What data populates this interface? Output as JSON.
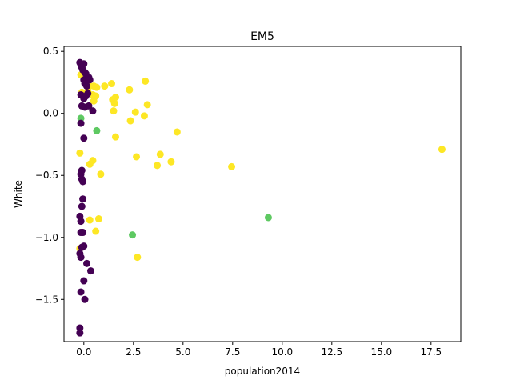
{
  "chart_data": {
    "type": "scatter",
    "title": "EM5",
    "xlabel": "population2014",
    "ylabel": "White",
    "xlim": [
      -1.0,
      19.0
    ],
    "ylim": [
      -1.84,
      0.54
    ],
    "grid": false,
    "x_ticks": [
      {
        "value": 0.0,
        "label": "0.0"
      },
      {
        "value": 2.5,
        "label": "2.5"
      },
      {
        "value": 5.0,
        "label": "5.0"
      },
      {
        "value": 7.5,
        "label": "7.5"
      },
      {
        "value": 10.0,
        "label": "10.0"
      },
      {
        "value": 12.5,
        "label": "12.5"
      },
      {
        "value": 15.0,
        "label": "15.0"
      },
      {
        "value": 17.5,
        "label": "17.5"
      }
    ],
    "y_ticks": [
      {
        "value": 0.5,
        "label": "0.5"
      },
      {
        "value": 0.0,
        "label": "0.0"
      },
      {
        "value": -0.5,
        "label": "−0.5"
      },
      {
        "value": -1.0,
        "label": "−1.0"
      },
      {
        "value": -1.5,
        "label": "−1.5"
      }
    ],
    "series": [
      {
        "color": "#fde725",
        "points": [
          {
            "x": -0.15,
            "y": 0.31
          },
          {
            "x": -0.1,
            "y": 0.17
          },
          {
            "x": 0.05,
            "y": 0.3
          },
          {
            "x": 0.2,
            "y": 0.18
          },
          {
            "x": 0.3,
            "y": 0.22
          },
          {
            "x": 0.45,
            "y": 0.15
          },
          {
            "x": 0.5,
            "y": 0.22
          },
          {
            "x": 0.5,
            "y": 0.1
          },
          {
            "x": 0.6,
            "y": 0.14
          },
          {
            "x": 0.65,
            "y": 0.21
          },
          {
            "x": 1.05,
            "y": 0.22
          },
          {
            "x": 1.4,
            "y": 0.24
          },
          {
            "x": 1.45,
            "y": 0.11
          },
          {
            "x": 1.55,
            "y": 0.08
          },
          {
            "x": 1.6,
            "y": 0.13
          },
          {
            "x": 1.5,
            "y": 0.02
          },
          {
            "x": 1.6,
            "y": -0.19
          },
          {
            "x": 2.3,
            "y": 0.19
          },
          {
            "x": 2.35,
            "y": -0.06
          },
          {
            "x": 2.6,
            "y": 0.01
          },
          {
            "x": 2.65,
            "y": -0.35
          },
          {
            "x": 3.05,
            "y": -0.02
          },
          {
            "x": 3.1,
            "y": 0.26
          },
          {
            "x": 3.2,
            "y": 0.07
          },
          {
            "x": 3.7,
            "y": -0.42
          },
          {
            "x": 3.85,
            "y": -0.33
          },
          {
            "x": 4.4,
            "y": -0.39
          },
          {
            "x": 4.7,
            "y": -0.15
          },
          {
            "x": 7.45,
            "y": -0.43
          },
          {
            "x": 18.05,
            "y": -0.29
          },
          {
            "x": -0.2,
            "y": -0.32
          },
          {
            "x": 0.3,
            "y": -0.41
          },
          {
            "x": 0.45,
            "y": -0.38
          },
          {
            "x": 0.85,
            "y": -0.49
          },
          {
            "x": 0.3,
            "y": -0.86
          },
          {
            "x": 0.75,
            "y": -0.85
          },
          {
            "x": 0.6,
            "y": -0.95
          },
          {
            "x": -0.2,
            "y": -1.09
          },
          {
            "x": 2.7,
            "y": -1.16
          }
        ]
      },
      {
        "color": "#5ec962",
        "points": [
          {
            "x": -0.15,
            "y": -0.04
          },
          {
            "x": 0.65,
            "y": -0.14
          },
          {
            "x": 2.45,
            "y": -0.98
          },
          {
            "x": 9.3,
            "y": -0.84
          }
        ]
      },
      {
        "color": "#440154",
        "points": [
          {
            "x": -0.2,
            "y": 0.41
          },
          {
            "x": -0.15,
            "y": 0.39
          },
          {
            "x": -0.1,
            "y": 0.37
          },
          {
            "x": 0.0,
            "y": 0.4
          },
          {
            "x": -0.05,
            "y": 0.35
          },
          {
            "x": 0.05,
            "y": 0.33
          },
          {
            "x": 0.1,
            "y": 0.32
          },
          {
            "x": 0.0,
            "y": 0.27
          },
          {
            "x": 0.15,
            "y": 0.28
          },
          {
            "x": 0.25,
            "y": 0.29
          },
          {
            "x": 0.3,
            "y": 0.27
          },
          {
            "x": 0.05,
            "y": 0.24
          },
          {
            "x": 0.15,
            "y": 0.22
          },
          {
            "x": -0.15,
            "y": 0.15
          },
          {
            "x": 0.2,
            "y": 0.16
          },
          {
            "x": 0.1,
            "y": 0.14
          },
          {
            "x": 0.0,
            "y": 0.12
          },
          {
            "x": -0.1,
            "y": 0.06
          },
          {
            "x": 0.05,
            "y": 0.05
          },
          {
            "x": 0.25,
            "y": 0.06
          },
          {
            "x": 0.45,
            "y": 0.02
          },
          {
            "x": -0.15,
            "y": -0.08
          },
          {
            "x": 0.0,
            "y": -0.2
          },
          {
            "x": -0.1,
            "y": -0.46
          },
          {
            "x": -0.15,
            "y": -0.49
          },
          {
            "x": -0.1,
            "y": -0.53
          },
          {
            "x": -0.05,
            "y": -0.55
          },
          {
            "x": -0.05,
            "y": -0.69
          },
          {
            "x": -0.1,
            "y": -0.75
          },
          {
            "x": -0.2,
            "y": -0.83
          },
          {
            "x": -0.15,
            "y": -0.87
          },
          {
            "x": -0.15,
            "y": -0.96
          },
          {
            "x": -0.05,
            "y": -0.96
          },
          {
            "x": -0.1,
            "y": -1.08
          },
          {
            "x": 0.0,
            "y": -1.07
          },
          {
            "x": -0.2,
            "y": -1.13
          },
          {
            "x": -0.15,
            "y": -1.16
          },
          {
            "x": 0.15,
            "y": -1.21
          },
          {
            "x": 0.35,
            "y": -1.27
          },
          {
            "x": 0.0,
            "y": -1.35
          },
          {
            "x": -0.15,
            "y": -1.44
          },
          {
            "x": 0.05,
            "y": -1.5
          },
          {
            "x": -0.2,
            "y": -1.73
          },
          {
            "x": -0.2,
            "y": -1.77
          }
        ]
      }
    ]
  }
}
